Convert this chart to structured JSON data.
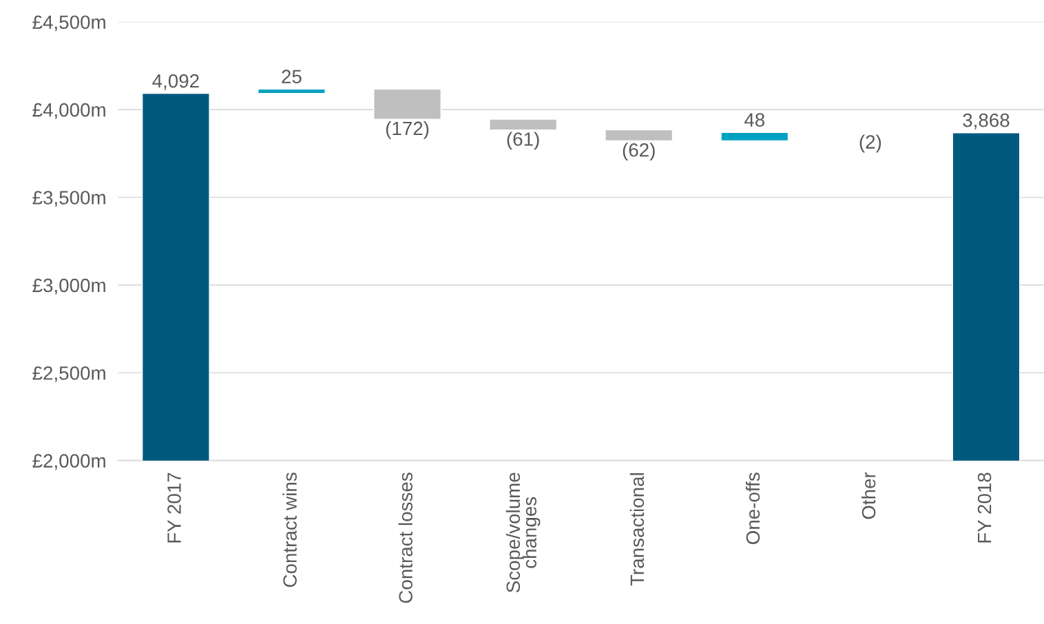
{
  "chart_data": {
    "type": "bar",
    "categories": [
      "FY 2017",
      "Contract wins",
      "Contract losses",
      "Scope/volume\nchanges",
      "Transactional",
      "One-offs",
      "Other",
      "FY 2018"
    ],
    "values": [
      4092,
      25,
      -172,
      -61,
      -62,
      48,
      -2,
      3868
    ],
    "base": [
      null,
      4092,
      4117,
      3945,
      3884,
      3822,
      3870,
      null
    ],
    "colors": [
      "#005a80",
      "#00a2c2",
      "#bfbfbf",
      "#bfbfbf",
      "#bfbfbf",
      "#00a2c2",
      "#e0e0e0",
      "#005a80"
    ],
    "value_labels": [
      "4,092",
      "25",
      "(172)",
      "(61)",
      "(62)",
      "48",
      "(2)",
      "3,868"
    ],
    "ylim": [
      2000,
      4500
    ],
    "yticks": [
      {
        "value": 2000,
        "label": "£2,000m"
      },
      {
        "value": 2500,
        "label": "£2,500m"
      },
      {
        "value": 3000,
        "label": "£3,000m"
      },
      {
        "value": 3500,
        "label": "£3,500m"
      },
      {
        "value": 4000,
        "label": "£4,000m"
      },
      {
        "value": 4500,
        "label": "£4,500m"
      }
    ],
    "grid": "y"
  }
}
